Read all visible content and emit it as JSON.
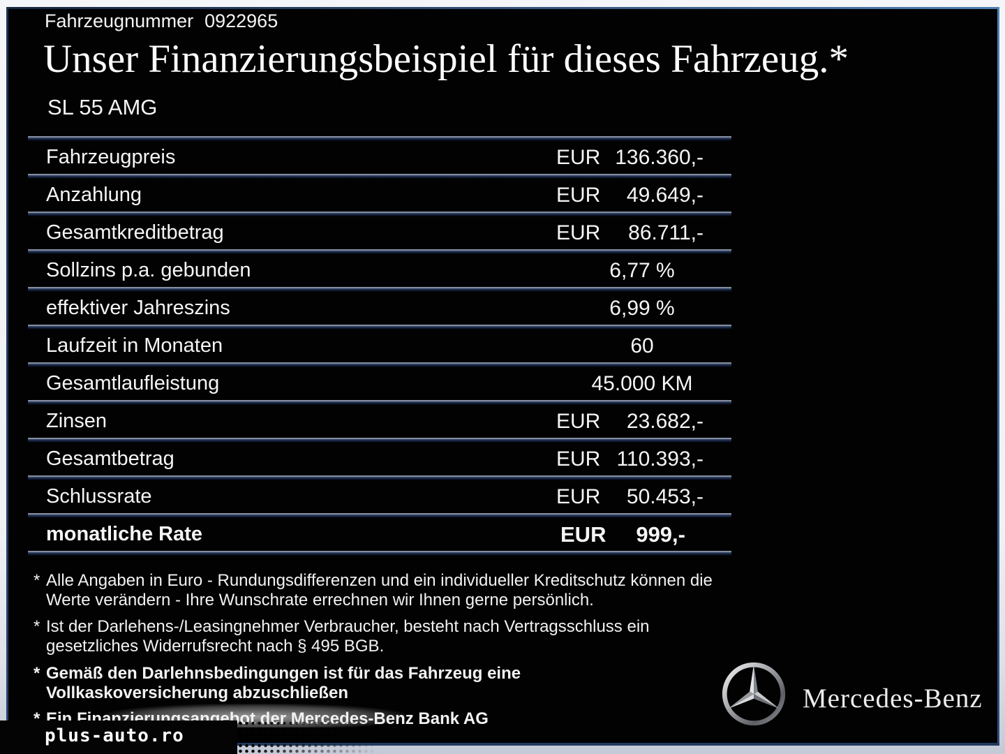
{
  "page": {
    "vehicle_number_label": "Fahrzeugnummer",
    "vehicle_number": "0922965",
    "title": "Unser Finanzierungsbeispiel für dieses Fahrzeug.*",
    "model": "SL 55 AMG"
  },
  "table": {
    "rows": [
      {
        "label": "Fahrzeugpreis",
        "currency": "EUR",
        "value": "136.360,-"
      },
      {
        "label": "Anzahlung",
        "currency": "EUR",
        "value": "49.649,-"
      },
      {
        "label": "Gesamtkreditbetrag",
        "currency": "EUR",
        "value": "86.711,-"
      },
      {
        "label": "Sollzins p.a. gebunden",
        "value": "6,77 %",
        "center": true
      },
      {
        "label": "effektiver Jahreszins",
        "value": "6,99 %",
        "center": true
      },
      {
        "label": "Laufzeit in Monaten",
        "value": "60",
        "center": true
      },
      {
        "label": "Gesamtlaufleistung",
        "value": "45.000 KM",
        "center": true
      },
      {
        "label": "Zinsen",
        "currency": "EUR",
        "value": "23.682,-"
      },
      {
        "label": "Gesamtbetrag",
        "currency": "EUR",
        "value": "110.393,-"
      },
      {
        "label": "Schlussrate",
        "currency": "EUR",
        "value": "50.453,-"
      },
      {
        "label": "monatliche Rate",
        "currency": "EUR",
        "value": "999,-",
        "bold": true
      }
    ]
  },
  "footnotes": [
    {
      "marker": "*",
      "bold": false,
      "lines": [
        "Alle Angaben in Euro - Rundungsdifferenzen und ein individueller Kreditschutz können die",
        "Werte verändern - Ihre Wunschrate errechnen wir Ihnen gerne persönlich."
      ]
    },
    {
      "marker": "*",
      "bold": false,
      "lines": [
        "Ist der Darlehens-/Leasingnehmer Verbraucher, besteht nach Vertragsschluss ein",
        "gesetzliches Widerrufsrecht nach § 495 BGB."
      ]
    },
    {
      "marker": "*",
      "bold": true,
      "lines": [
        "Gemäß den Darlehnsbedingungen ist für das Fahrzeug eine",
        "Vollkaskoversicherung abzuschließen"
      ]
    },
    {
      "marker": "*",
      "bold": true,
      "lines": [
        "Ein Finanzierungsangebot der Mercedes-Benz Bank AG"
      ]
    }
  ],
  "branding": {
    "logo_icon": "mercedes-star-icon",
    "wordmark": "Mercedes-Benz"
  },
  "watermark": {
    "text": "plus-auto.ro"
  },
  "colors": {
    "panel_background": "#020203",
    "edge_highlight_blue": "#4f80b2",
    "separator_navy": "#1b2848",
    "text": "#f5f5f5",
    "frame_light": "#f4f5f8",
    "frame_shadow": "#c4c9d6"
  }
}
